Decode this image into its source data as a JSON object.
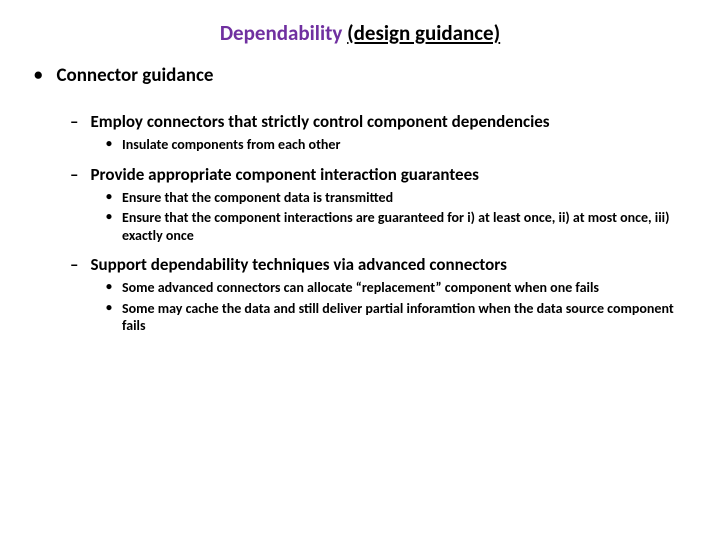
{
  "title": {
    "purple": "Dependability ",
    "black": "(design guidance)"
  },
  "level1": "Connector guidance",
  "sections": [
    {
      "heading": "Employ connectors that strictly control component dependencies",
      "items": [
        "Insulate components from each other"
      ]
    },
    {
      "heading": "Provide appropriate component interaction guarantees",
      "items": [
        "Ensure that the component data is transmitted",
        "Ensure that the component interactions are guaranteed for i) at least once, ii) at most once, iii) exactly once"
      ]
    },
    {
      "heading": "Support dependability techniques via advanced connectors",
      "items": [
        "Some advanced connectors can allocate “replacement” component when one fails",
        "Some may cache the data and still deliver partial inforamtion when the data source component fails"
      ]
    }
  ],
  "colors": {
    "purple": "#7030a0",
    "black": "#000000",
    "background": "#ffffff"
  },
  "fontsizes": {
    "title": 21,
    "level1": 19,
    "level2": 17,
    "level3": 14
  }
}
